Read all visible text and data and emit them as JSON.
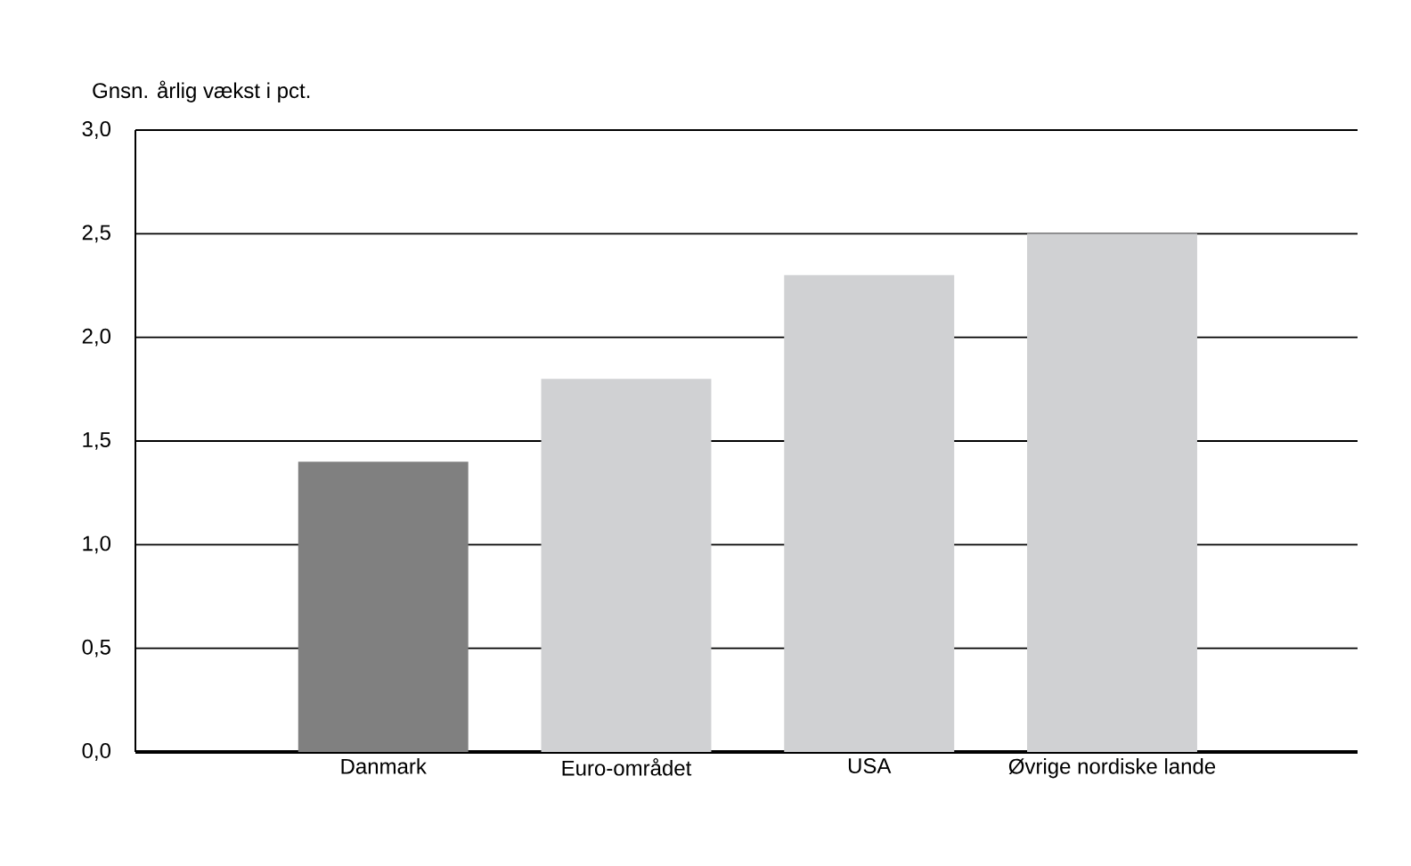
{
  "chart_data": {
    "type": "bar",
    "ylabel": "Gnsn. årlig vækst i pct.",
    "categories": [
      "Danmark",
      "Euro-området",
      "USA",
      "Øvrige nordiske lande"
    ],
    "values": [
      1.4,
      1.8,
      2.3,
      2.5
    ],
    "colors": [
      "#808080",
      "#d0d1d3",
      "#d0d1d3",
      "#d0d1d3"
    ],
    "ylim": [
      0,
      3
    ],
    "yticks": [
      {
        "value": 0,
        "label": "0,0"
      },
      {
        "value": 0.5,
        "label": "0,5"
      },
      {
        "value": 1,
        "label": "1,0"
      },
      {
        "value": 1.5,
        "label": "1,5"
      },
      {
        "value": 2,
        "label": "2,0"
      },
      {
        "value": 2.5,
        "label": "2,5"
      },
      {
        "value": 3,
        "label": "3,0"
      }
    ],
    "grid": "y"
  }
}
